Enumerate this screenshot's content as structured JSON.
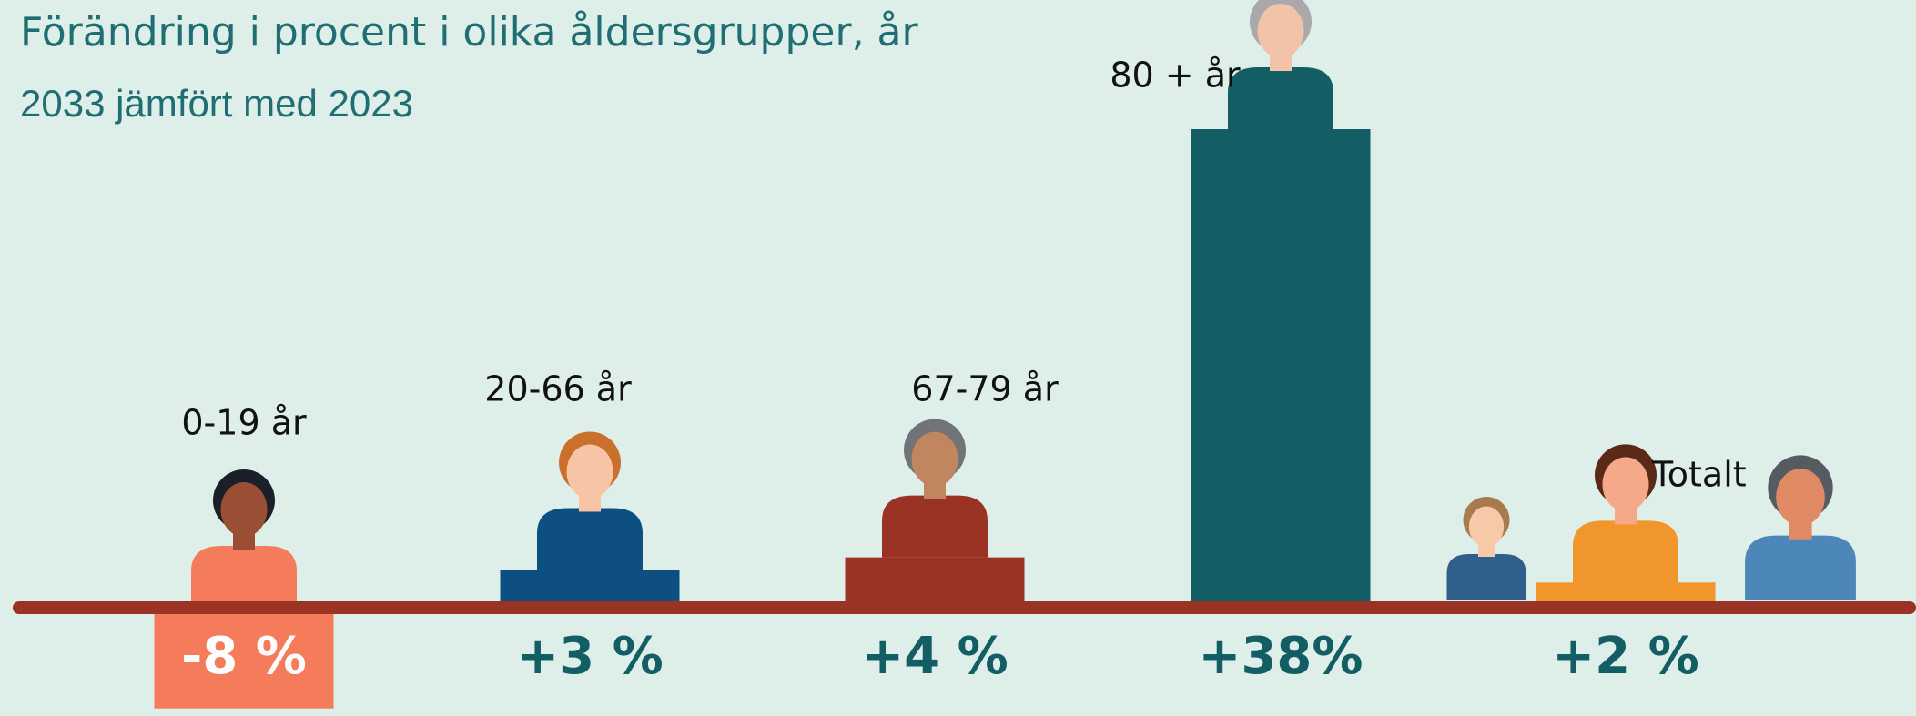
{
  "chart_data": {
    "type": "bar",
    "title": "Förändring i procent i olika åldersgrupper, år",
    "subtitle": "2033 jämfört med 2023",
    "categories": [
      "0-19 år",
      "20-66 år",
      "67-79 år",
      "80 + år",
      "Totalt"
    ],
    "values": [
      -8,
      3,
      4,
      38,
      2
    ],
    "value_labels": [
      "-8 %",
      "+3 %",
      "+4 %",
      "+38%",
      "+2 %"
    ],
    "colors": [
      "#f47c5a",
      "#0d4f80",
      "#9b3325",
      "#135e65",
      "#f0962a"
    ]
  }
}
